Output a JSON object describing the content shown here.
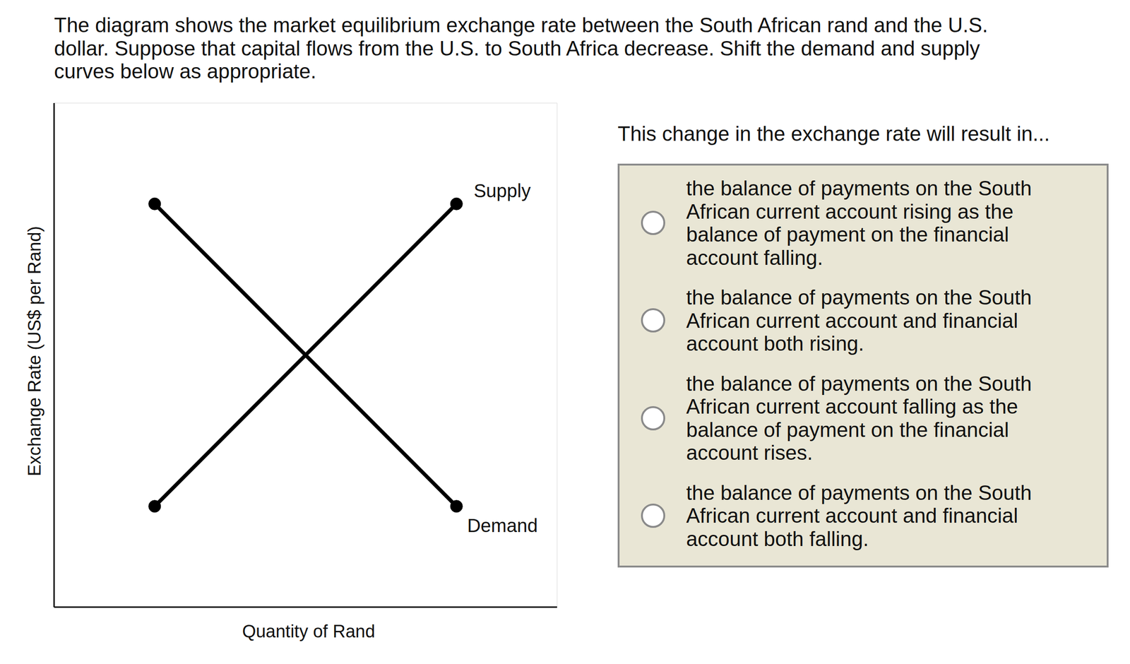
{
  "question": [
    "The diagram shows the market equilibrium exchange rate between the South African rand and the U.S.",
    "dollar. Suppose that capital flows from the U.S. to South Africa decrease. Shift the demand and supply",
    "curves below as appropriate."
  ],
  "chart_data": {
    "type": "line",
    "x_label": "Quantity of Rand",
    "y_label": "Exchange Rate (US$ per Rand)",
    "xlim": [
      0,
      10
    ],
    "ylim": [
      0,
      10
    ],
    "xticks": [
      0,
      1,
      2,
      3,
      4,
      5,
      6,
      7,
      8,
      9,
      10
    ],
    "yticks": [
      0,
      1,
      2,
      3,
      4,
      5,
      6,
      7,
      8,
      9,
      10
    ],
    "grid": true,
    "tick_labels": false,
    "series": [
      {
        "name": "Supply",
        "color": "#000000",
        "marker": "circle",
        "x": [
          2,
          8
        ],
        "values": [
          2,
          8
        ]
      },
      {
        "name": "Demand",
        "color": "#000000",
        "marker": "circle",
        "x": [
          2,
          8
        ],
        "values": [
          8,
          2
        ]
      }
    ]
  },
  "prompt": "This change in the exchange rate will result in...",
  "options": [
    [
      "the balance of payments on the South",
      "African current account rising as the",
      "balance of payment on the financial",
      "account falling."
    ],
    [
      "the balance of payments on the South",
      "African current account and financial",
      "account both rising."
    ],
    [
      "the balance of payments on the South",
      "African current account falling as the",
      "balance of payment on the financial",
      "account rises."
    ],
    [
      "the balance of payments on the South",
      "African current account and financial",
      "account both falling."
    ]
  ]
}
